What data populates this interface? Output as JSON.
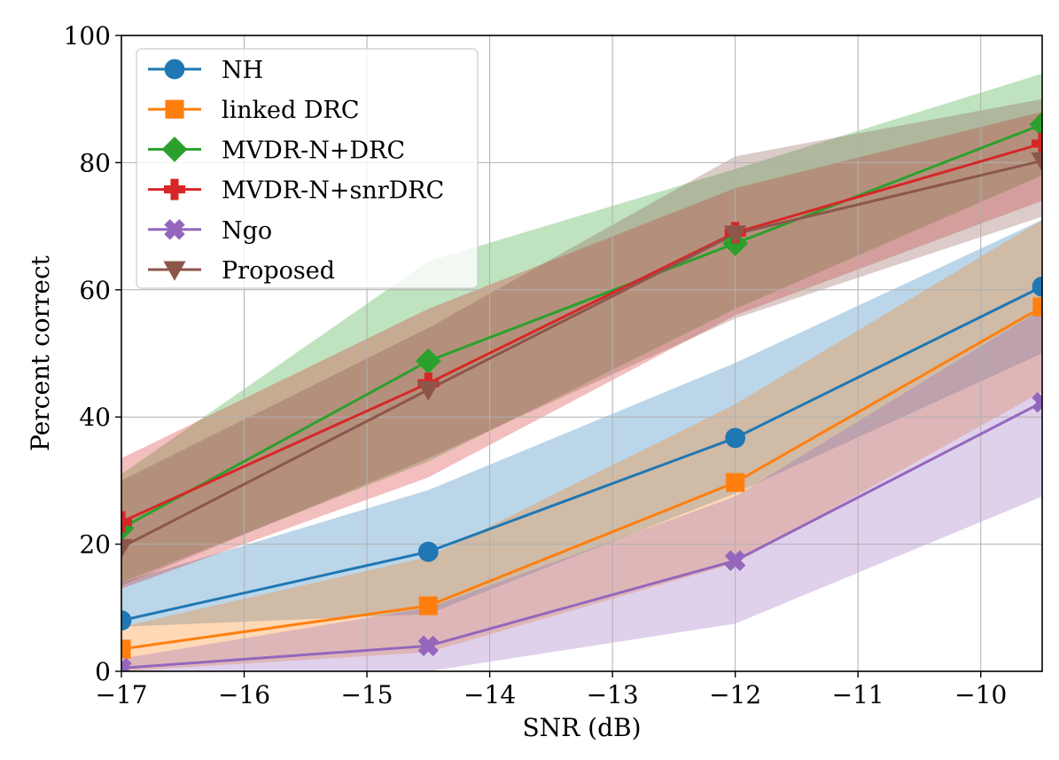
{
  "chart_data": {
    "type": "line",
    "xlabel": "SNR (dB)",
    "ylabel": "Percent correct",
    "xlim": [
      -17,
      -9.5
    ],
    "ylim": [
      0,
      100
    ],
    "xticks": [
      -17,
      -16,
      -15,
      -14,
      -13,
      -12,
      -11,
      -10
    ],
    "xtick_labels": [
      "−17",
      "−16",
      "−15",
      "−14",
      "−13",
      "−12",
      "−11",
      "−10"
    ],
    "yticks": [
      0,
      20,
      40,
      60,
      80,
      100
    ],
    "ytick_labels": [
      "0",
      "20",
      "40",
      "60",
      "80",
      "100"
    ],
    "grid": true,
    "legend_position": "top-left",
    "x": [
      -17,
      -14.5,
      -12,
      -9.5
    ],
    "series": [
      {
        "name": "NH",
        "color": "#1f77b4",
        "marker": "circle",
        "values": [
          8,
          18.8,
          36.7,
          60.5
        ],
        "band_lower": [
          7,
          9,
          28,
          50
        ],
        "band_upper": [
          14,
          28.5,
          48.5,
          71
        ]
      },
      {
        "name": "linked DRC",
        "color": "#ff7f0e",
        "marker": "square",
        "values": [
          3.5,
          10.3,
          29.7,
          57.3
        ],
        "band_lower": [
          0,
          3,
          17,
          44
        ],
        "band_upper": [
          7,
          18,
          42,
          71
        ]
      },
      {
        "name": "MVDR-N+DRC",
        "color": "#2ca02c",
        "marker": "diamond",
        "values": [
          22.5,
          48.8,
          67.3,
          86
        ],
        "band_lower": [
          14,
          33,
          57,
          78
        ],
        "band_upper": [
          31,
          64.5,
          79,
          94
        ]
      },
      {
        "name": "MVDR-N+snrDRC",
        "color": "#d62728",
        "marker": "plus",
        "values": [
          23.5,
          45.3,
          69,
          83
        ],
        "band_lower": [
          13,
          30.5,
          56,
          74
        ],
        "band_upper": [
          33.5,
          57,
          76,
          88
        ]
      },
      {
        "name": "Ngo",
        "color": "#9467bd",
        "marker": "x",
        "values": [
          0.5,
          4,
          17.4,
          42.3
        ],
        "band_lower": [
          0,
          0,
          7.5,
          27.5
        ],
        "band_upper": [
          2,
          10,
          27.5,
          57
        ]
      },
      {
        "name": "Proposed",
        "color": "#8c564b",
        "marker": "triangle-down",
        "values": [
          19.5,
          44.3,
          68.8,
          80.3
        ],
        "band_lower": [
          13.5,
          33.5,
          55.5,
          71.5
        ],
        "band_upper": [
          30,
          54,
          81,
          90
        ]
      }
    ]
  }
}
